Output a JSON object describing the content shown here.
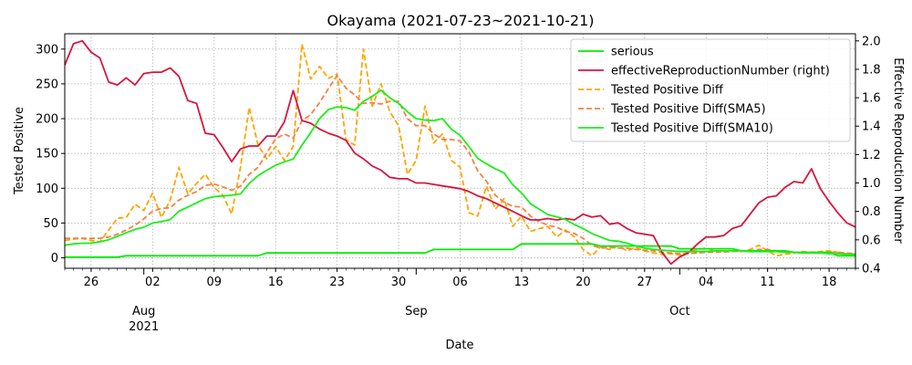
{
  "chart_data": {
    "type": "line",
    "title": "Okayama (2021-07-23~2021-10-21)",
    "xlabel": "Date",
    "ylabel_left": "Tested Positive",
    "ylabel_right": "Effective Reproduction Number",
    "x_start": "2021-07-23",
    "x_end": "2021-10-21",
    "ylim_left": [
      -15,
      322
    ],
    "ylim_right": [
      0.4,
      2.05
    ],
    "yticks_left": [
      "0",
      "50",
      "100",
      "150",
      "200",
      "250",
      "300"
    ],
    "yticks_right": [
      "0.4",
      "0.6",
      "0.8",
      "1.0",
      "1.2",
      "1.4",
      "1.6",
      "1.8",
      "2.0"
    ],
    "xticks_minor": [
      {
        "date": "2021-07-26",
        "label": "26"
      },
      {
        "date": "2021-08-02",
        "label": "02"
      },
      {
        "date": "2021-08-09",
        "label": "09"
      },
      {
        "date": "2021-08-16",
        "label": "16"
      },
      {
        "date": "2021-08-23",
        "label": "23"
      },
      {
        "date": "2021-08-30",
        "label": "30"
      },
      {
        "date": "2021-09-06",
        "label": "06"
      },
      {
        "date": "2021-09-13",
        "label": "13"
      },
      {
        "date": "2021-09-20",
        "label": "20"
      },
      {
        "date": "2021-09-27",
        "label": "27"
      },
      {
        "date": "2021-10-04",
        "label": "04"
      },
      {
        "date": "2021-10-11",
        "label": "11"
      },
      {
        "date": "2021-10-18",
        "label": "18"
      }
    ],
    "xticks_major": [
      {
        "date": "2021-08-01",
        "label": "Aug",
        "sublabel": "2021"
      },
      {
        "date": "2021-09-01",
        "label": "Sep",
        "sublabel": ""
      },
      {
        "date": "2021-10-01",
        "label": "Oct",
        "sublabel": ""
      }
    ],
    "grid": true,
    "legend_position": "top-right",
    "series": [
      {
        "name": "serious",
        "axis": "left",
        "color": "#00ee00",
        "style": "solid",
        "values": [
          1,
          1,
          1,
          1,
          1,
          1,
          1,
          3,
          3,
          3,
          3,
          3,
          3,
          3,
          3,
          3,
          3,
          3,
          3,
          3,
          3,
          3,
          3,
          7,
          7,
          7,
          7,
          7,
          7,
          7,
          7,
          7,
          7,
          7,
          7,
          7,
          7,
          7,
          7,
          7,
          7,
          7,
          12,
          12,
          12,
          12,
          12,
          12,
          12,
          12,
          12,
          12,
          20,
          20,
          20,
          20,
          20,
          20,
          20,
          20,
          20,
          17,
          17,
          17,
          17,
          17,
          17,
          17,
          17,
          17,
          13,
          13,
          13,
          13,
          13,
          13,
          13,
          10,
          10,
          10,
          10,
          10,
          10,
          8,
          8,
          8,
          8,
          8,
          3,
          3,
          3,
          3,
          3,
          3,
          3,
          3,
          3,
          3,
          3,
          1,
          1,
          1,
          1,
          1,
          1,
          1,
          1,
          3,
          3,
          3,
          3,
          3
        ]
      },
      {
        "name": "effectiveReproductionNumber (right)",
        "axis": "right",
        "color": "#d6163e",
        "style": "solid",
        "values": [
          1.83,
          1.98,
          2.0,
          1.92,
          1.88,
          1.71,
          1.69,
          1.74,
          1.69,
          1.77,
          1.78,
          1.78,
          1.81,
          1.75,
          1.58,
          1.56,
          1.35,
          1.34,
          1.25,
          1.15,
          1.24,
          1.26,
          1.26,
          1.33,
          1.33,
          1.43,
          1.65,
          1.44,
          1.42,
          1.38,
          1.35,
          1.33,
          1.3,
          1.21,
          1.17,
          1.12,
          1.09,
          1.04,
          1.03,
          1.03,
          1.0,
          1.0,
          0.99,
          0.98,
          0.97,
          0.96,
          0.94,
          0.91,
          0.89,
          0.86,
          0.83,
          0.8,
          0.77,
          0.74,
          0.74,
          0.75,
          0.74,
          0.75,
          0.74,
          0.78,
          0.76,
          0.77,
          0.71,
          0.72,
          0.68,
          0.65,
          0.64,
          0.63,
          0.51,
          0.43,
          0.48,
          0.51,
          0.57,
          0.62,
          0.62,
          0.63,
          0.68,
          0.7,
          0.78,
          0.86,
          0.9,
          0.91,
          0.97,
          1.01,
          1.0,
          1.1,
          0.96,
          0.87,
          0.79,
          0.72,
          0.69,
          0.68,
          0.7,
          0.72,
          0.74,
          0.76
        ]
      },
      {
        "name": "Tested Positive Diff",
        "axis": "left",
        "color": "#ffa500",
        "style": "dashed",
        "values": [
          25,
          27,
          28,
          25,
          23,
          40,
          57,
          58,
          77,
          68,
          93,
          58,
          83,
          130,
          92,
          107,
          120,
          101,
          90,
          63,
          130,
          216,
          162,
          142,
          160,
          140,
          160,
          307,
          257,
          275,
          258,
          264,
          170,
          162,
          300,
          218,
          250,
          210,
          190,
          120,
          140,
          218,
          165,
          178,
          140,
          130,
          65,
          60,
          103,
          70,
          85,
          45,
          60,
          38,
          42,
          45,
          30,
          40,
          30,
          12,
          3,
          16,
          12,
          17,
          10,
          15,
          10,
          7,
          5,
          6,
          4,
          8,
          12,
          14,
          10,
          8,
          10,
          9,
          12,
          18,
          10,
          3,
          5,
          7,
          9,
          8,
          9,
          10,
          8,
          6,
          5,
          4,
          4,
          5
        ]
      },
      {
        "name": "Tested Positive Diff(SMA5)",
        "axis": "left",
        "color": "#f58146",
        "style": "dashed",
        "values": [
          28,
          28,
          28,
          28,
          28,
          30,
          34,
          40,
          47,
          56,
          67,
          71,
          72,
          83,
          90,
          95,
          104,
          106,
          102,
          97,
          103,
          120,
          130,
          151,
          171,
          178,
          172,
          197,
          206,
          223,
          243,
          262,
          244,
          234,
          222,
          223,
          221,
          225,
          225,
          200,
          190,
          190,
          178,
          170,
          170,
          168,
          152,
          125,
          110,
          90,
          80,
          74,
          73,
          60,
          52,
          47,
          44,
          38,
          35,
          28,
          18,
          14,
          15,
          14,
          14,
          12,
          11,
          10,
          8,
          7,
          6,
          6,
          7,
          8,
          8,
          9,
          9,
          10,
          10,
          12,
          12,
          10,
          9,
          8,
          7,
          7,
          7,
          8,
          8,
          7,
          6,
          6,
          5,
          5
        ]
      },
      {
        "name": "Tested Positive Diff(SMA10)",
        "axis": "left",
        "color": "#1aef1a",
        "style": "solid",
        "values": [
          18,
          20,
          21,
          21,
          23,
          26,
          31,
          36,
          41,
          44,
          50,
          52,
          55,
          67,
          73,
          79,
          85,
          88,
          89,
          90,
          92,
          107,
          118,
          126,
          133,
          138,
          142,
          162,
          180,
          200,
          213,
          217,
          216,
          212,
          225,
          232,
          241,
          230,
          222,
          210,
          200,
          198,
          197,
          200,
          185,
          176,
          160,
          143,
          135,
          128,
          122,
          105,
          93,
          78,
          70,
          62,
          59,
          55,
          48,
          42,
          35,
          30,
          25,
          24,
          21,
          17,
          14,
          12,
          11,
          10,
          9,
          9,
          9,
          9,
          10,
          10,
          10,
          10,
          9,
          9,
          9,
          9,
          8,
          8,
          7,
          7,
          7,
          6,
          6,
          5,
          5,
          5,
          5,
          4
        ]
      }
    ]
  }
}
